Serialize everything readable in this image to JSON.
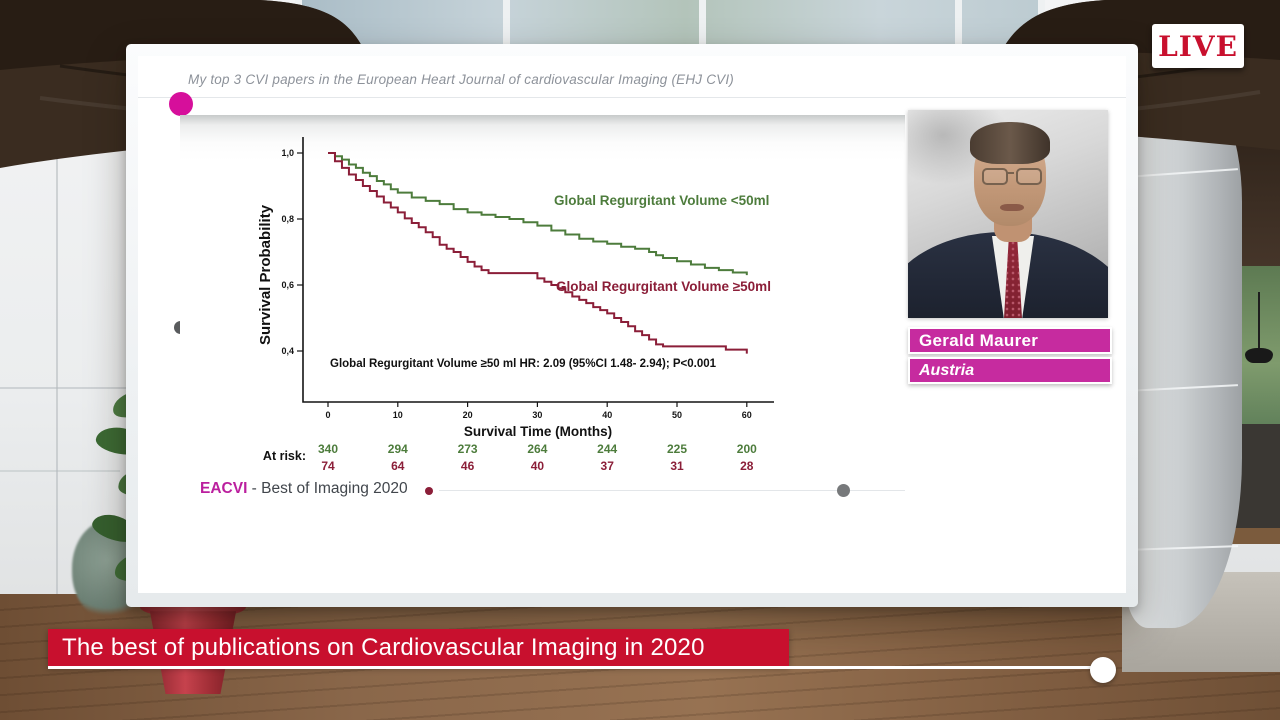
{
  "live_badge": {
    "label": "LIVE"
  },
  "banner": {
    "title": "The best of publications on Cardiovascular Imaging in 2020"
  },
  "slide": {
    "header": "My top 3 CVI papers in the European Heart Journal of cardiovascular Imaging (EHJ CVI)",
    "footer_brand": "EACVI",
    "footer_text": " - Best of Imaging 2020"
  },
  "speaker": {
    "name": "Gerald Maurer",
    "country": "Austria"
  },
  "colors": {
    "accent_magenta": "#c62b9f",
    "magenta_dot": "#d60f9b",
    "banner_red": "#c8102e",
    "curve_green": "#4d7c3c",
    "curve_red": "#8b1e38"
  },
  "chart_data": {
    "type": "line",
    "subtype": "kaplan-meier-step",
    "title": "",
    "xlabel": "Survival Time (Months)",
    "ylabel": "Survival Probability",
    "xlim": [
      0,
      62
    ],
    "ylim": [
      0.25,
      1.02
    ],
    "grid": false,
    "legend_position": "inline",
    "x_ticks": [
      0,
      10,
      20,
      30,
      40,
      50,
      60
    ],
    "y_ticks": [
      {
        "label": "1,0",
        "value": 1.0
      },
      {
        "label": "0,8",
        "value": 0.8
      },
      {
        "label": "0,6",
        "value": 0.6
      },
      {
        "label": "0,4",
        "value": 0.4
      }
    ],
    "annotation": "Global Regurgitant Volume ≥50 ml HR: 2.09 (95%CI 1.48- 2.94); P<0.001",
    "at_risk_label": "At risk:",
    "series": [
      {
        "name": "Global Regurgitant Volume <50ml",
        "color": "#4d7c3c",
        "at_risk": [
          340,
          294,
          273,
          264,
          244,
          225,
          200
        ],
        "points": [
          [
            0,
            1.0
          ],
          [
            1,
            0.99
          ],
          [
            2,
            0.98
          ],
          [
            3,
            0.965
          ],
          [
            4,
            0.955
          ],
          [
            5,
            0.94
          ],
          [
            6,
            0.93
          ],
          [
            7,
            0.915
          ],
          [
            8,
            0.905
          ],
          [
            9,
            0.89
          ],
          [
            10,
            0.88
          ],
          [
            12,
            0.865
          ],
          [
            14,
            0.855
          ],
          [
            16,
            0.845
          ],
          [
            18,
            0.83
          ],
          [
            20,
            0.82
          ],
          [
            22,
            0.813
          ],
          [
            24,
            0.806
          ],
          [
            26,
            0.8
          ],
          [
            28,
            0.79
          ],
          [
            30,
            0.78
          ],
          [
            32,
            0.765
          ],
          [
            34,
            0.753
          ],
          [
            36,
            0.74
          ],
          [
            38,
            0.732
          ],
          [
            40,
            0.725
          ],
          [
            42,
            0.716
          ],
          [
            44,
            0.71
          ],
          [
            46,
            0.7
          ],
          [
            47,
            0.69
          ],
          [
            48,
            0.682
          ],
          [
            50,
            0.672
          ],
          [
            52,
            0.662
          ],
          [
            54,
            0.652
          ],
          [
            56,
            0.645
          ],
          [
            58,
            0.638
          ],
          [
            60,
            0.63
          ]
        ]
      },
      {
        "name": "Global Regurgitant Volume ≥50ml",
        "color": "#8b1e38",
        "at_risk": [
          74,
          64,
          46,
          40,
          37,
          31,
          28
        ],
        "points": [
          [
            0,
            1.0
          ],
          [
            1,
            0.975
          ],
          [
            2,
            0.955
          ],
          [
            3,
            0.935
          ],
          [
            4,
            0.918
          ],
          [
            5,
            0.9
          ],
          [
            6,
            0.885
          ],
          [
            7,
            0.868
          ],
          [
            8,
            0.85
          ],
          [
            9,
            0.835
          ],
          [
            10,
            0.82
          ],
          [
            11,
            0.802
          ],
          [
            12,
            0.788
          ],
          [
            13,
            0.775
          ],
          [
            14,
            0.76
          ],
          [
            15,
            0.745
          ],
          [
            16,
            0.722
          ],
          [
            17,
            0.71
          ],
          [
            18,
            0.7
          ],
          [
            19,
            0.685
          ],
          [
            20,
            0.67
          ],
          [
            21,
            0.656
          ],
          [
            22,
            0.645
          ],
          [
            23,
            0.636
          ],
          [
            29,
            0.636
          ],
          [
            30,
            0.62
          ],
          [
            31,
            0.61
          ],
          [
            32,
            0.6
          ],
          [
            33,
            0.59
          ],
          [
            34,
            0.578
          ],
          [
            35,
            0.565
          ],
          [
            36,
            0.555
          ],
          [
            37,
            0.545
          ],
          [
            38,
            0.533
          ],
          [
            39,
            0.524
          ],
          [
            40,
            0.514
          ],
          [
            41,
            0.5
          ],
          [
            42,
            0.488
          ],
          [
            43,
            0.475
          ],
          [
            44,
            0.46
          ],
          [
            45,
            0.448
          ],
          [
            46,
            0.435
          ],
          [
            47,
            0.42
          ],
          [
            48,
            0.414
          ],
          [
            56,
            0.414
          ],
          [
            57,
            0.404
          ],
          [
            59,
            0.404
          ],
          [
            60,
            0.392
          ]
        ]
      }
    ]
  }
}
